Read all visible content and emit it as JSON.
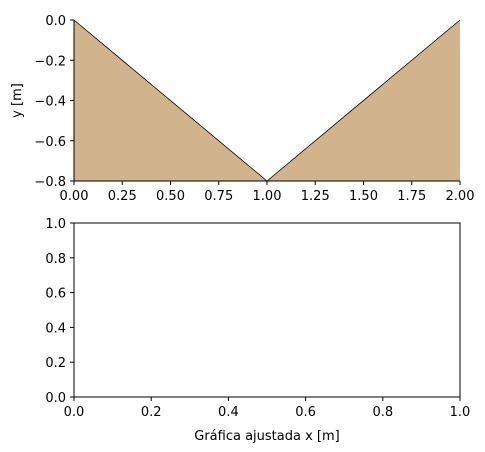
{
  "chart_data": [
    {
      "type": "area",
      "x": [
        0.0,
        1.0,
        2.0
      ],
      "y": [
        0.0,
        -0.8,
        0.0
      ],
      "fill_color": "#d2b48c",
      "line_color": "#000000",
      "xlim": [
        0.0,
        2.0
      ],
      "ylim": [
        -0.8,
        0.0
      ],
      "xticks": [
        0.0,
        0.25,
        0.5,
        0.75,
        1.0,
        1.25,
        1.5,
        1.75,
        2.0
      ],
      "xtick_labels": [
        "0.00",
        "0.25",
        "0.50",
        "0.75",
        "1.00",
        "1.25",
        "1.50",
        "1.75",
        "2.00"
      ],
      "yticks": [
        0.0,
        -0.2,
        -0.4,
        -0.6,
        -0.8
      ],
      "ytick_labels": [
        "0.0",
        "−0.2",
        "−0.4",
        "−0.6",
        "−0.8"
      ],
      "xlabel": "",
      "ylabel": "y [m]",
      "spines": [
        "left",
        "bottom"
      ],
      "grid": false
    },
    {
      "type": "line",
      "series": [],
      "xlim": [
        0.0,
        1.0
      ],
      "ylim": [
        0.0,
        1.0
      ],
      "xticks": [
        0.0,
        0.2,
        0.4,
        0.6,
        0.8,
        1.0
      ],
      "xtick_labels": [
        "0.0",
        "0.2",
        "0.4",
        "0.6",
        "0.8",
        "1.0"
      ],
      "yticks": [
        0.0,
        0.2,
        0.4,
        0.6,
        0.8,
        1.0
      ],
      "ytick_labels": [
        "0.0",
        "0.2",
        "0.4",
        "0.6",
        "0.8",
        "1.0"
      ],
      "xlabel": "Gráfica ajustada x [m]",
      "ylabel": "",
      "spines": [
        "left",
        "bottom",
        "top",
        "right"
      ],
      "grid": false
    }
  ]
}
